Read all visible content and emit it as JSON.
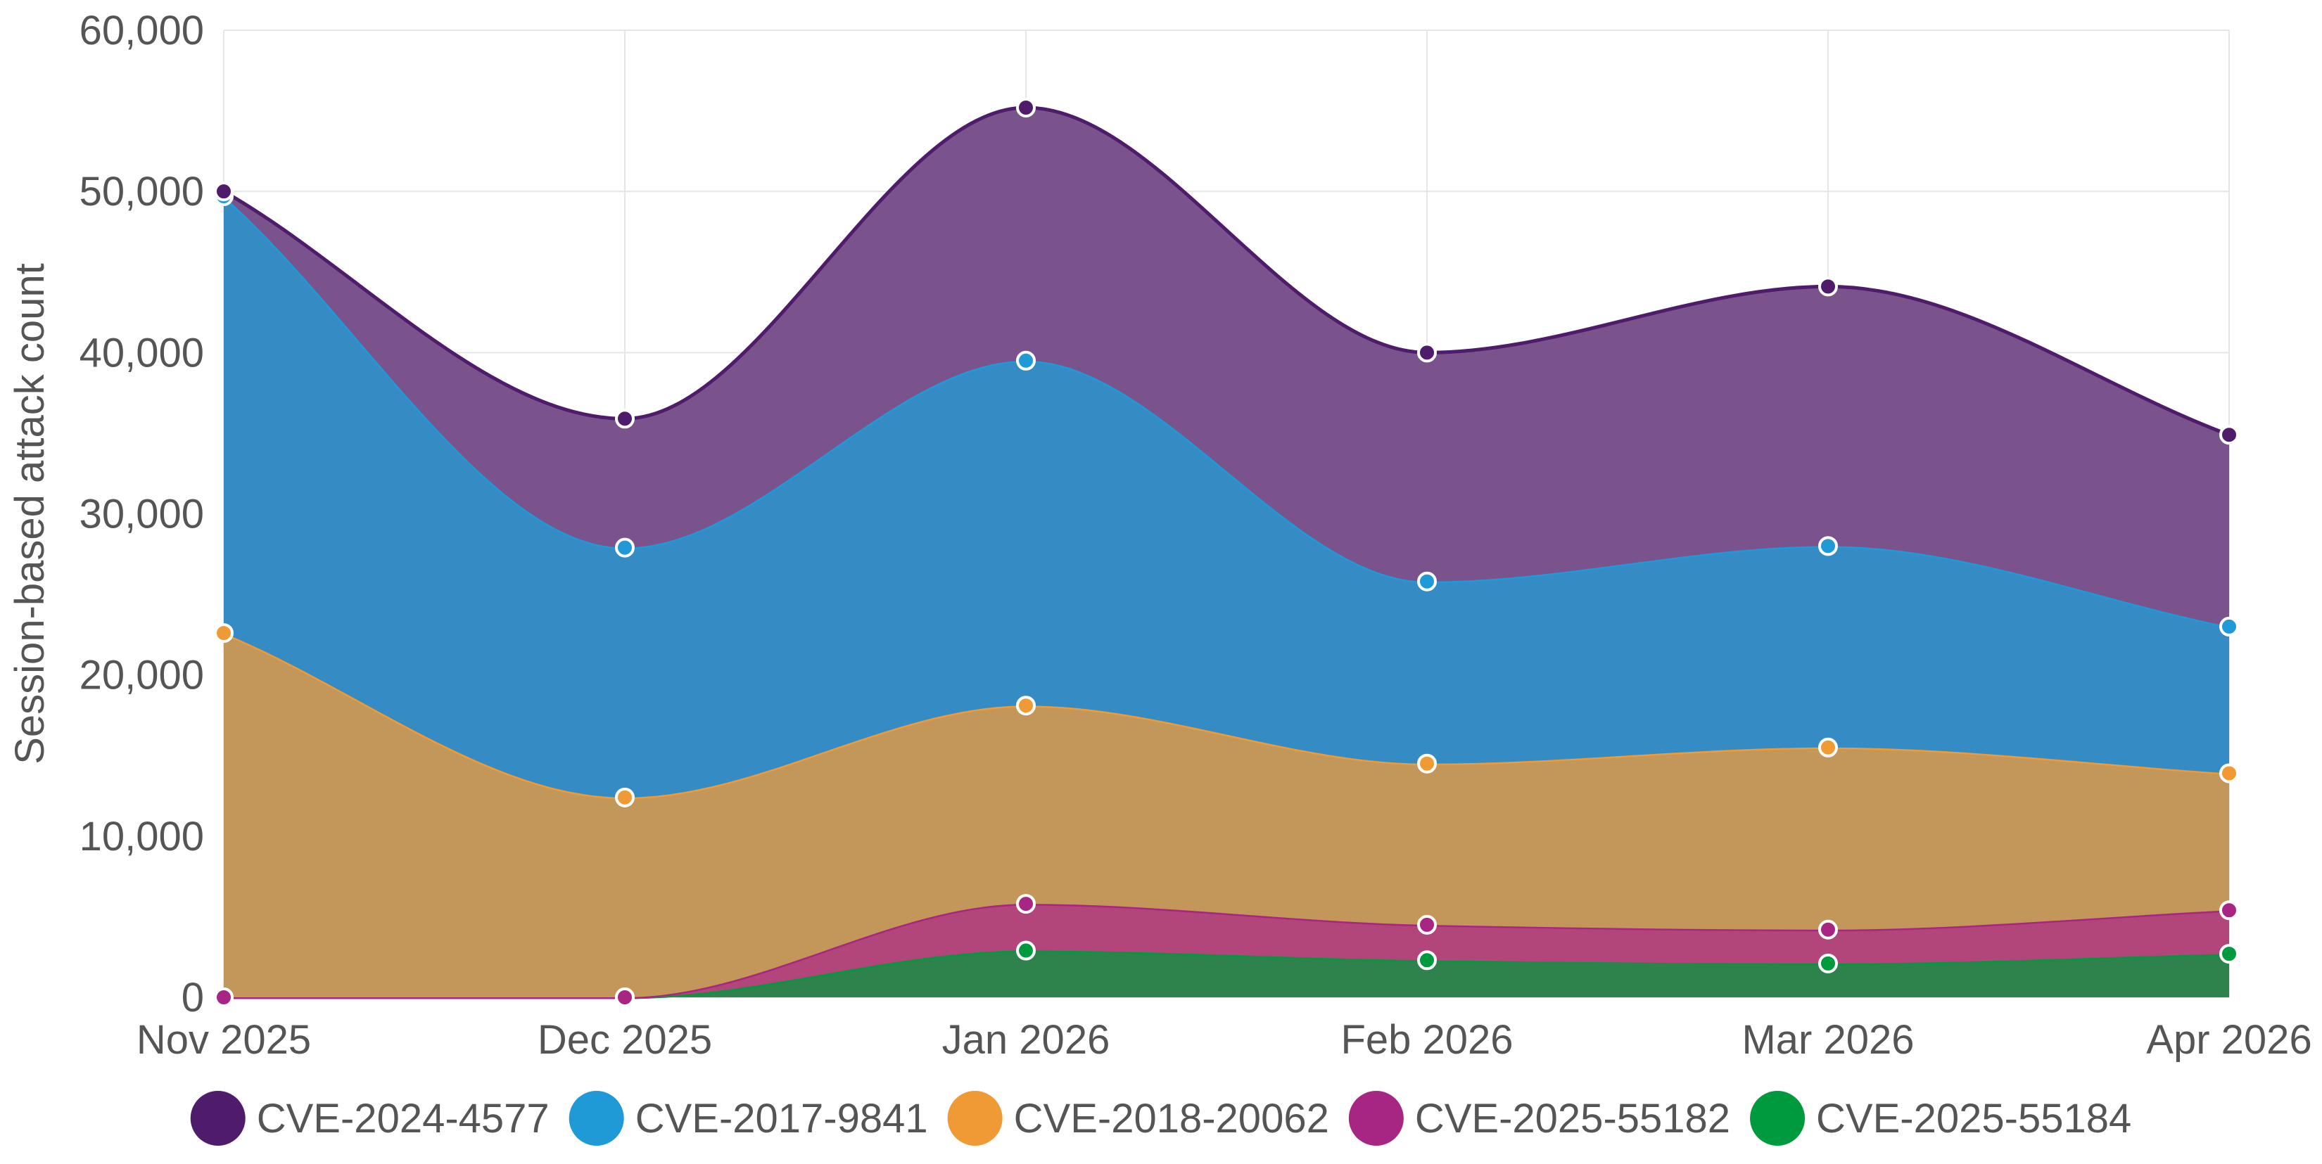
{
  "chart_data": {
    "type": "area",
    "stacked": true,
    "smooth": true,
    "title": "",
    "xlabel": "",
    "ylabel": "Session-based attack count",
    "categories": [
      "Nov 2025",
      "Dec 2025",
      "Jan 2026",
      "Feb 2026",
      "Mar 2026",
      "Apr 2026"
    ],
    "ylim": [
      0,
      60000
    ],
    "yticks": [
      0,
      10000,
      20000,
      30000,
      40000,
      50000,
      60000
    ],
    "ytick_labels": [
      "0",
      "10,000",
      "20,000",
      "30,000",
      "40,000",
      "50,000",
      "60,000"
    ],
    "grid": true,
    "legend_position": "bottom",
    "series": [
      {
        "name": "CVE-2024-4577",
        "color": "#4f1c6b",
        "fill": "#7a538c",
        "values": [
          300,
          8000,
          15700,
          14200,
          16100,
          11900
        ]
      },
      {
        "name": "CVE-2017-9841",
        "color": "#1f9ad6",
        "fill": "#358bc4",
        "values": [
          27100,
          15500,
          21400,
          11300,
          12500,
          9100
        ]
      },
      {
        "name": "CVE-2018-20062",
        "color": "#f09a36",
        "fill": "#c3975a",
        "values": [
          22600,
          12400,
          12300,
          10000,
          11300,
          8500
        ]
      },
      {
        "name": "CVE-2025-55182",
        "color": "#a82683",
        "fill": "#b2457a",
        "values": [
          0,
          0,
          2900,
          2200,
          2100,
          2700
        ]
      },
      {
        "name": "CVE-2025-55184",
        "color": "#009a3e",
        "fill": "#2d834b",
        "values": [
          0,
          0,
          2900,
          2300,
          2100,
          2700
        ]
      }
    ]
  }
}
